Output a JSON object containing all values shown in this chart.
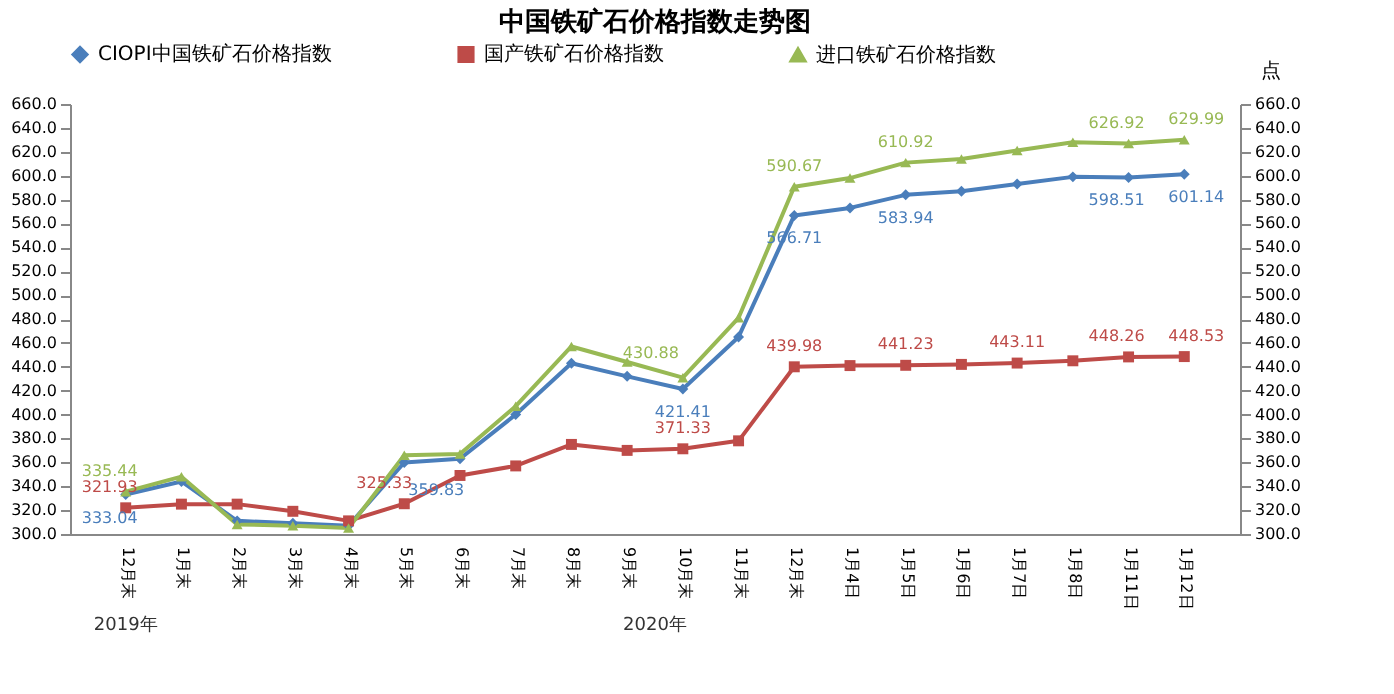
{
  "chart_data": {
    "type": "line",
    "title": "中国铁矿石价格指数走势图",
    "y2label": "点",
    "categories": [
      "12月末",
      "1月末",
      "2月末",
      "3月末",
      "4月末",
      "5月末",
      "6月末",
      "7月末",
      "8月末",
      "9月末",
      "10月末",
      "11月末",
      "12月末",
      "1月4日",
      "1月5日",
      "1月6日",
      "1月7日",
      "1月8日",
      "1月11日",
      "1月12日"
    ],
    "series": [
      {
        "name": "CIOPI中国铁矿石价格指数",
        "color": "#4a7ebb",
        "marker": "diamond",
        "values": [
          333.04,
          344,
          311,
          309,
          307,
          359.83,
          363,
          400,
          443,
          432,
          421.41,
          465,
          566.71,
          573,
          583.94,
          587,
          593,
          599,
          598.51,
          601.14
        ],
        "value_labels": [
          "333.04",
          null,
          null,
          null,
          null,
          "359.83",
          null,
          null,
          null,
          null,
          "421.41",
          null,
          "566.71",
          null,
          "583.94",
          null,
          null,
          null,
          "598.51",
          "601.14"
        ]
      },
      {
        "name": "国产铁矿石价格指数",
        "color": "#be4b48",
        "marker": "square",
        "values": [
          321.93,
          325,
          325,
          319,
          311,
          325.33,
          349,
          357,
          375,
          370,
          371.33,
          378,
          439.98,
          441,
          441.23,
          442,
          443.11,
          445,
          448.26,
          448.53
        ],
        "value_labels": [
          "321.93",
          null,
          null,
          null,
          null,
          "325.33",
          null,
          null,
          null,
          null,
          "371.33",
          null,
          "439.98",
          null,
          "441.23",
          null,
          "443.11",
          null,
          "448.26",
          "448.53"
        ]
      },
      {
        "name": "进口铁矿石价格指数",
        "color": "#98b954",
        "marker": "triangle",
        "values": [
          335.44,
          348,
          308,
          307,
          305,
          366,
          367,
          407,
          457,
          444,
          430.88,
          481,
          590.67,
          598,
          610.92,
          614,
          621,
          628,
          626.92,
          629.99
        ],
        "value_labels": [
          "335.44",
          null,
          null,
          null,
          null,
          null,
          null,
          null,
          null,
          null,
          "430.88",
          null,
          "590.67",
          null,
          "610.92",
          null,
          null,
          null,
          "626.92",
          "629.99"
        ]
      }
    ],
    "ylim": [
      300,
      660
    ],
    "yticks": [
      {
        "value": 300,
        "label": "300.0"
      },
      {
        "value": 320,
        "label": "320.0"
      },
      {
        "value": 340,
        "label": "340.0"
      },
      {
        "value": 360,
        "label": "360.0"
      },
      {
        "value": 380,
        "label": "380.0"
      },
      {
        "value": 400,
        "label": "400.0"
      },
      {
        "value": 420,
        "label": "420.0"
      },
      {
        "value": 440,
        "label": "440.0"
      },
      {
        "value": 460,
        "label": "460.0"
      },
      {
        "value": 480,
        "label": "480.0"
      },
      {
        "value": 500,
        "label": "500.0"
      },
      {
        "value": 520,
        "label": "520.0"
      },
      {
        "value": 540,
        "label": "540.0"
      },
      {
        "value": 560,
        "label": "560.0"
      },
      {
        "value": 580,
        "label": "580.0"
      },
      {
        "value": 600,
        "label": "600.0"
      },
      {
        "value": 620,
        "label": "620.0"
      },
      {
        "value": 640,
        "label": "640.0"
      },
      {
        "value": 660,
        "label": "660.0"
      }
    ],
    "y2lim": [
      300,
      660
    ],
    "y2ticks": [
      {
        "value": 300,
        "label": "300.0"
      },
      {
        "value": 320,
        "label": "320.0"
      },
      {
        "value": 340,
        "label": "340.0"
      },
      {
        "value": 360,
        "label": "360.0"
      },
      {
        "value": 380,
        "label": "380.0"
      },
      {
        "value": 400,
        "label": "400.0"
      },
      {
        "value": 420,
        "label": "420.0"
      },
      {
        "value": 440,
        "label": "440.0"
      },
      {
        "value": 460,
        "label": "460.0"
      },
      {
        "value": 480,
        "label": "480.0"
      },
      {
        "value": 500,
        "label": "500.0"
      },
      {
        "value": 520,
        "label": "520.0"
      },
      {
        "value": 540,
        "label": "540.0"
      },
      {
        "value": 560,
        "label": "560.0"
      },
      {
        "value": 580,
        "label": "580.0"
      },
      {
        "value": 600,
        "label": "600.0"
      },
      {
        "value": 620,
        "label": "620.0"
      },
      {
        "value": 640,
        "label": "640.0"
      },
      {
        "value": 660,
        "label": "660.0"
      }
    ],
    "annotations": [
      "2019年",
      "2020年"
    ],
    "grid": false,
    "legend": "top",
    "line_style": "solid"
  }
}
